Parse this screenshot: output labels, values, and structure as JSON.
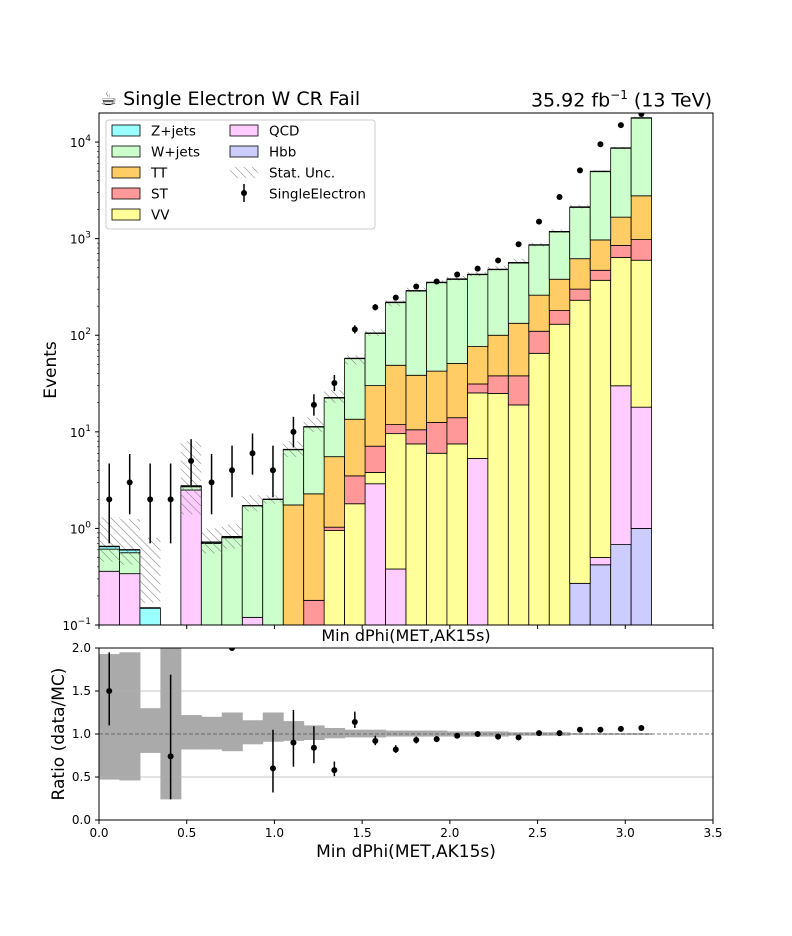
{
  "header": {
    "title_left": "☕ Single Electron W CR Fail",
    "lumi_value": "35.92 fb",
    "lumi_exp": "−1",
    "lumi_energy": "(13 TeV)"
  },
  "top_panel": {
    "ylabel": "Events",
    "xlabel": "Min dPhi(MET,AK15s)",
    "yscale": "log",
    "ylim": [
      0.1,
      20000
    ],
    "y_ticks": [
      {
        "base": "10",
        "exp": "−1",
        "value": 0.1
      },
      {
        "base": "10",
        "exp": "0",
        "value": 1
      },
      {
        "base": "10",
        "exp": "1",
        "value": 10
      },
      {
        "base": "10",
        "exp": "2",
        "value": 100
      },
      {
        "base": "10",
        "exp": "3",
        "value": 1000
      },
      {
        "base": "10",
        "exp": "4",
        "value": 10000
      }
    ]
  },
  "bottom_panel": {
    "ylabel": "Ratio (data/MC)",
    "xlabel": "Min dPhi(MET,AK15s)",
    "ylim": [
      0.0,
      2.0
    ],
    "xlim": [
      0.0,
      3.5
    ],
    "y_ticks": [
      "0.0",
      "0.5",
      "1.0",
      "1.5",
      "2.0"
    ],
    "x_ticks": [
      "0.0",
      "0.5",
      "1.0",
      "1.5",
      "2.0",
      "2.5",
      "3.0",
      "3.5"
    ],
    "grid_lines": [
      0.5,
      1.5
    ],
    "reference_line": 1.0
  },
  "legend": {
    "placement": "top-left",
    "entries": [
      {
        "label": "Z+jets",
        "kind": "patch",
        "color": "#99ffff"
      },
      {
        "label": "W+jets",
        "kind": "patch",
        "color": "#ccffcc"
      },
      {
        "label": "TT",
        "kind": "patch",
        "color": "#ffcc66"
      },
      {
        "label": "ST",
        "kind": "patch",
        "color": "#ff9999"
      },
      {
        "label": "VV",
        "kind": "patch",
        "color": "#ffff99"
      },
      {
        "label": "QCD",
        "kind": "patch",
        "color": "#ffccff"
      },
      {
        "label": "Hbb",
        "kind": "patch",
        "color": "#ccccff"
      },
      {
        "label": "Stat. Unc.",
        "kind": "hatch",
        "color": "#777777"
      },
      {
        "label": "SingleElectron",
        "kind": "errorbar",
        "color": "#000000"
      }
    ]
  },
  "chart_data": {
    "type": "bar",
    "stacked": true,
    "bin_edges": [
      0.0,
      0.1167,
      0.2333,
      0.35,
      0.4667,
      0.5833,
      0.7,
      0.8167,
      0.9333,
      1.05,
      1.1667,
      1.2833,
      1.4,
      1.5167,
      1.6333,
      1.75,
      1.8667,
      1.9833,
      2.1,
      2.2167,
      2.3333,
      2.45,
      2.5667,
      2.6833,
      2.8,
      2.9167,
      3.0333,
      3.15
    ],
    "series": [
      {
        "name": "Hbb",
        "color": "#ccccff",
        "values": [
          0,
          0,
          0,
          0,
          0,
          0,
          0,
          0,
          0,
          0,
          0,
          0,
          0,
          0,
          0,
          0,
          0,
          0,
          0,
          0,
          0,
          0,
          0,
          0.27,
          0.42,
          0.68,
          1.0
        ]
      },
      {
        "name": "QCD",
        "color": "#ffccff",
        "values": [
          0.36,
          0.34,
          0,
          0,
          2.5,
          0,
          0,
          0.12,
          0,
          0,
          0,
          0,
          0,
          2.9,
          0.38,
          0,
          0,
          0,
          5.3,
          0,
          0,
          0,
          0,
          0,
          0.08,
          29.3,
          17
        ]
      },
      {
        "name": "VV",
        "color": "#ffff99",
        "values": [
          0,
          0,
          0,
          0,
          0,
          0,
          0,
          0,
          0,
          0,
          0,
          0.95,
          1.8,
          0.9,
          9.2,
          7.5,
          6,
          7.5,
          20,
          25,
          19,
          65,
          130,
          230,
          370,
          610,
          580
        ]
      },
      {
        "name": "ST",
        "color": "#ff9999",
        "values": [
          0,
          0,
          0,
          0,
          0,
          0,
          0,
          0,
          0,
          0,
          0.18,
          0.08,
          1.7,
          3.3,
          2.3,
          3,
          6.5,
          6.5,
          6,
          13,
          19,
          45,
          50,
          70,
          100,
          210,
          380
        ]
      },
      {
        "name": "TT",
        "color": "#ffcc66",
        "values": [
          0,
          0,
          0,
          0,
          0,
          0,
          0,
          0,
          0,
          1.75,
          2.1,
          4.5,
          10,
          23,
          37,
          28,
          30,
          37,
          45,
          62,
          95,
          150,
          200,
          320,
          500,
          820,
          1800
        ]
      },
      {
        "name": "W+jets",
        "color": "#ccffcc",
        "values": [
          0.25,
          0.22,
          0.07,
          0,
          0.2,
          0.7,
          0.8,
          1.6,
          2,
          4.8,
          9,
          17,
          44,
          75,
          170,
          250,
          310,
          330,
          350,
          380,
          430,
          600,
          800,
          1500,
          4000,
          7000,
          15000
        ]
      },
      {
        "name": "Z+jets",
        "color": "#99ffff",
        "values": [
          0.04,
          0.04,
          0.08,
          0,
          0.05,
          0.02,
          0.02,
          0,
          0,
          0,
          0,
          0,
          0,
          0,
          0,
          0,
          0,
          0,
          0,
          0,
          0,
          0,
          0,
          0,
          0,
          0,
          0
        ]
      }
    ],
    "stat_unc_down": [
      0.45,
      0.42,
      0.17,
      0,
      1.4,
      0.55,
      0.62,
      1.5,
      1.8,
      5.5,
      10,
      20,
      50,
      98,
      200,
      280,
      340,
      370,
      410,
      470,
      560,
      830,
      1150,
      2050,
      4900,
      8500,
      17600
    ],
    "stat_unc_up": [
      1.3,
      1.25,
      0.8,
      0,
      8,
      1,
      1.1,
      2.2,
      2.2,
      8,
      14,
      27,
      62,
      115,
      230,
      310,
      370,
      410,
      450,
      520,
      620,
      900,
      1250,
      2250,
      5100,
      8900,
      18300
    ],
    "data": {
      "name": "SingleElectron",
      "x": [
        0.0583,
        0.175,
        0.2917,
        0.4083,
        0.525,
        0.6417,
        0.7583,
        0.875,
        0.9917,
        1.1083,
        1.225,
        1.3417,
        1.4583,
        1.575,
        1.6917,
        1.8083,
        1.925,
        2.0417,
        2.1583,
        2.275,
        2.3917,
        2.5083,
        2.625,
        2.7417,
        2.8583,
        2.975,
        3.0917
      ],
      "y": [
        2,
        3,
        2,
        2,
        5,
        3,
        4,
        6,
        4,
        10,
        19,
        32,
        115,
        195,
        245,
        320,
        360,
        425,
        490,
        595,
        875,
        1500,
        2700,
        5100,
        9500,
        15000,
        19500
      ],
      "yerr_low": [
        1.3,
        1.6,
        1.3,
        1.3,
        2.2,
        1.6,
        1.9,
        2.4,
        1.9,
        3.1,
        4.3,
        5.6,
        10.7,
        14,
        15.6,
        17.9,
        19,
        20.6,
        22,
        24.4,
        29.6,
        38.7,
        52,
        71.4,
        97.5,
        122,
        140
      ],
      "yerr_high": [
        2.7,
        2.9,
        2.7,
        2.7,
        3.4,
        2.9,
        3.2,
        3.6,
        3.2,
        4.3,
        5.5,
        6.8,
        11.8,
        15,
        16.7,
        19,
        20,
        21.6,
        23,
        25.4,
        30.6,
        39.7,
        53,
        72.4,
        98.5,
        123,
        141
      ]
    },
    "ratio": {
      "x": [
        0.0583,
        0.2917,
        0.4083,
        0.6417,
        0.7583,
        0.875,
        0.9917,
        1.1083,
        1.225,
        1.3417,
        1.4583,
        1.575,
        1.6917,
        1.8083,
        1.925,
        2.0417,
        2.1583,
        2.275,
        2.3917,
        2.5083,
        2.625,
        2.7417,
        2.8583,
        2.975,
        3.0917
      ],
      "y": [
        1.5,
        5.0,
        0.74,
        3.0,
        2.0,
        2.2,
        0.6,
        0.9,
        0.84,
        0.58,
        1.14,
        0.92,
        0.82,
        0.93,
        0.94,
        0.98,
        1.0,
        0.97,
        0.96,
        1.01,
        1.01,
        1.05,
        1.05,
        1.06,
        1.07
      ],
      "yerr_low": [
        0.4,
        0,
        0.5,
        0,
        0,
        0,
        0.28,
        0.28,
        0.18,
        0.07,
        0.07,
        0.05,
        0.04,
        0.04,
        0.03,
        0.03,
        0.03,
        0.03,
        0.02,
        0.02,
        0.02,
        0.02,
        0.01,
        0.01,
        0.01
      ],
      "yerr_high": [
        0.45,
        0,
        0.95,
        0,
        0,
        0,
        0.45,
        0.38,
        0.25,
        0.1,
        0.12,
        0.06,
        0.05,
        0.04,
        0.03,
        0.03,
        0.03,
        0.03,
        0.02,
        0.02,
        0.02,
        0.02,
        0.01,
        0.01,
        0.01
      ],
      "unc_band_low": [
        0.47,
        0.46,
        0.78,
        0.24,
        0.82,
        0.82,
        0.8,
        0.88,
        0.91,
        0.92,
        0.93,
        0.95,
        0.96,
        0.96,
        0.97,
        0.97,
        0.97,
        0.97,
        0.97,
        0.97,
        0.98,
        0.98,
        0.98,
        0.99,
        0.99,
        0.99,
        0.99
      ],
      "unc_band_high": [
        1.93,
        1.95,
        1.3,
        2.0,
        1.22,
        1.2,
        1.25,
        1.16,
        1.25,
        1.15,
        1.1,
        1.07,
        1.05,
        1.05,
        1.04,
        1.04,
        1.04,
        1.03,
        1.03,
        1.03,
        1.02,
        1.02,
        1.02,
        1.01,
        1.01,
        1.01,
        1.01
      ]
    }
  }
}
